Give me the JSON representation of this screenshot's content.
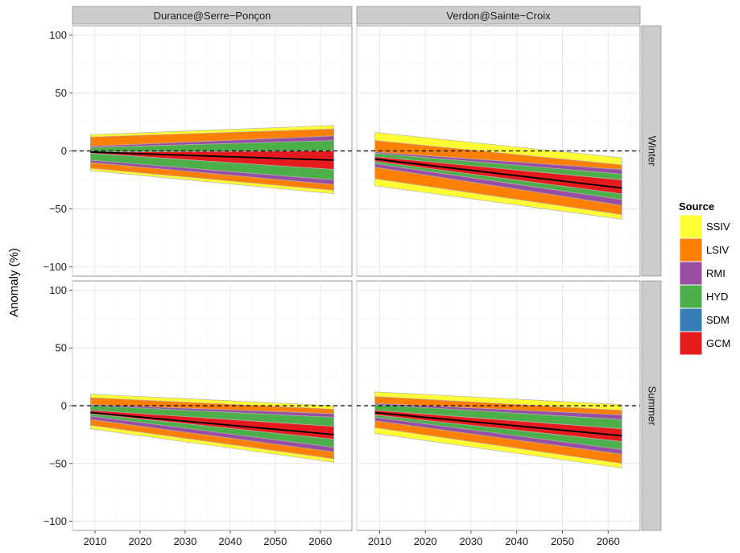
{
  "chart_data": {
    "type": "area",
    "title": "",
    "xlabel": "",
    "ylabel": "Anomaly (%)",
    "xlim": [
      2005,
      2067
    ],
    "ylim": [
      -108,
      108
    ],
    "x_ticks": [
      2010,
      2020,
      2030,
      2040,
      2050,
      2060
    ],
    "y_ticks": [
      -100,
      -50,
      0,
      50,
      100
    ],
    "grid": true,
    "reference_line": 0,
    "columns": [
      "Durance@Serre−Ponçon",
      "Verdon@Sainte−Croix"
    ],
    "rows": [
      "Winter",
      "Summer"
    ],
    "legend": {
      "title": "Source",
      "position": "right",
      "items": [
        {
          "name": "SSIV",
          "color": "#FFFF33"
        },
        {
          "name": "LSIV",
          "color": "#FF7F00"
        },
        {
          "name": "RMI",
          "color": "#984EA3"
        },
        {
          "name": "HYD",
          "color": "#4DAF4A"
        },
        {
          "name": "SDM",
          "color": "#377EB8"
        },
        {
          "name": "GCM",
          "color": "#E41A1C"
        }
      ]
    },
    "x": [
      2009,
      2063
    ],
    "panels": [
      {
        "column": "Durance@Serre−Ponçon",
        "row": "Winter",
        "mean": [
          -1,
          -8
        ],
        "bounds_upper": {
          "SSIV": [
            14,
            22
          ],
          "LSIV": [
            12,
            19
          ],
          "RMI": [
            4,
            13
          ],
          "HYD": [
            3,
            9
          ],
          "SDM": [
            -1,
            0
          ],
          "GCM": [
            -1,
            0
          ]
        },
        "bounds_lower": {
          "GCM": [
            -2,
            -16
          ],
          "SDM": [
            -2,
            -16
          ],
          "HYD": [
            -8,
            -25
          ],
          "RMI": [
            -10,
            -29
          ],
          "LSIV": [
            -15,
            -34
          ],
          "SSIV": [
            -17,
            -37
          ]
        }
      },
      {
        "column": "Verdon@Sainte−Croix",
        "row": "Winter",
        "mean": [
          -7,
          -32
        ],
        "bounds_upper": {
          "SSIV": [
            16,
            -6
          ],
          "LSIV": [
            9,
            -12
          ],
          "RMI": [
            -1,
            -16
          ],
          "HYD": [
            -2,
            -20
          ],
          "SDM": [
            -5,
            -25
          ],
          "GCM": [
            -5,
            -25
          ]
        },
        "bounds_lower": {
          "GCM": [
            -9,
            -37
          ],
          "SDM": [
            -9,
            -37
          ],
          "HYD": [
            -11,
            -42
          ],
          "RMI": [
            -14,
            -47
          ],
          "LSIV": [
            -24,
            -55
          ],
          "SSIV": [
            -30,
            -59
          ]
        }
      },
      {
        "column": "Durance@Serre−Ponçon",
        "row": "Summer",
        "mean": [
          -6,
          -25
        ],
        "bounds_upper": {
          "SSIV": [
            10,
            0
          ],
          "LSIV": [
            7,
            -3
          ],
          "RMI": [
            1,
            -7
          ],
          "HYD": [
            0,
            -10
          ],
          "SDM": [
            -4,
            -18
          ],
          "GCM": [
            -4,
            -18
          ]
        },
        "bounds_lower": {
          "GCM": [
            -7,
            -29
          ],
          "SDM": [
            -7,
            -29
          ],
          "HYD": [
            -9,
            -36
          ],
          "RMI": [
            -12,
            -40
          ],
          "LSIV": [
            -17,
            -46
          ],
          "SSIV": [
            -20,
            -49
          ]
        }
      },
      {
        "column": "Verdon@Sainte−Croix",
        "row": "Summer",
        "mean": [
          -6,
          -26
        ],
        "bounds_upper": {
          "SSIV": [
            12,
            1
          ],
          "LSIV": [
            8,
            -4
          ],
          "RMI": [
            2,
            -8
          ],
          "HYD": [
            1,
            -12
          ],
          "SDM": [
            -4,
            -20
          ],
          "GCM": [
            -4,
            -20
          ]
        },
        "bounds_lower": {
          "GCM": [
            -8,
            -31
          ],
          "SDM": [
            -8,
            -31
          ],
          "HYD": [
            -10,
            -38
          ],
          "RMI": [
            -13,
            -42
          ],
          "LSIV": [
            -19,
            -50
          ],
          "SSIV": [
            -24,
            -54
          ]
        }
      }
    ]
  }
}
